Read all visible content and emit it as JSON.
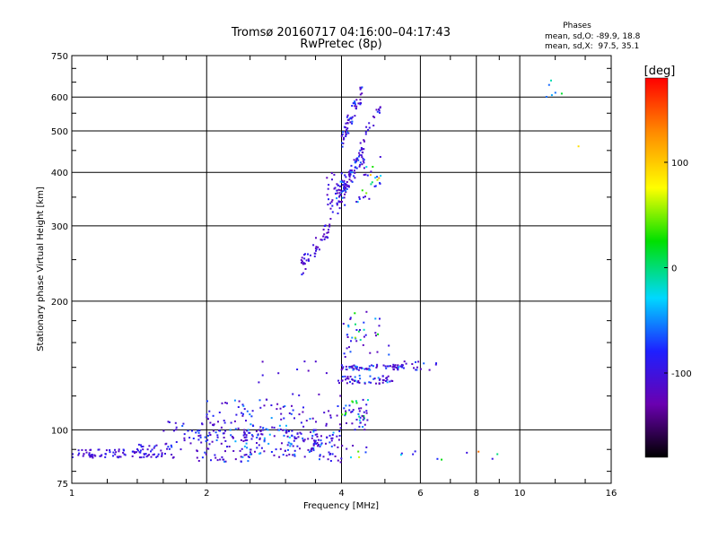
{
  "chart_data": {
    "type": "scatter",
    "title": "Tromsø 20160717 04:16:00–04:17:43",
    "subtitle": "RwPretec (8p)",
    "xlabel": "Frequency [MHz]",
    "ylabel": "Stationary phase Virtual Height [km]",
    "x_scale": "log",
    "y_scale": "log",
    "xlim": [
      1,
      16
    ],
    "ylim": [
      75,
      750
    ],
    "x_ticks": [
      1,
      2,
      4,
      6,
      8,
      10,
      16
    ],
    "y_ticks": [
      75,
      100,
      200,
      300,
      400,
      500,
      600,
      750
    ],
    "grid": true,
    "stats": {
      "heading": "Phases",
      "line_o": "mean, sd,O: -89.9, 18.8",
      "line_x": "mean, sd,X:  97.5, 35.1"
    },
    "colorbar": {
      "label": "[deg]",
      "ticks": [
        100,
        0,
        -100
      ],
      "range": [
        -180,
        180
      ]
    },
    "point_clusters": [
      {
        "x": [
          1.0,
          1.35
        ],
        "y": [
          86,
          90
        ],
        "phase": [
          -115,
          -80
        ],
        "n": 55
      },
      {
        "x": [
          1.35,
          1.7
        ],
        "y": [
          86,
          93
        ],
        "phase": [
          -115,
          -70
        ],
        "n": 50
      },
      {
        "x": [
          1.6,
          2.0
        ],
        "y": [
          90,
          105
        ],
        "phase": [
          -115,
          -60
        ],
        "n": 30
      },
      {
        "x": [
          1.9,
          2.5
        ],
        "y": [
          84,
          100
        ],
        "phase": [
          -120,
          -40
        ],
        "n": 70
      },
      {
        "x": [
          2.0,
          3.0
        ],
        "y": [
          98,
          118
        ],
        "phase": [
          -120,
          -40
        ],
        "n": 70
      },
      {
        "x": [
          2.4,
          3.6
        ],
        "y": [
          86,
          100
        ],
        "phase": [
          -120,
          -30
        ],
        "n": 100
      },
      {
        "x": [
          3.0,
          4.0
        ],
        "y": [
          92,
          115
        ],
        "phase": [
          -120,
          -20
        ],
        "n": 50
      },
      {
        "x": [
          3.4,
          4.0
        ],
        "y": [
          84,
          98
        ],
        "phase": [
          -120,
          -60
        ],
        "n": 40
      },
      {
        "x": [
          2.6,
          4.0
        ],
        "y": [
          120,
          145
        ],
        "phase": [
          -120,
          -80
        ],
        "n": 15
      },
      {
        "x": [
          4.0,
          4.6
        ],
        "y": [
          100,
          118
        ],
        "phase": [
          -120,
          40
        ],
        "n": 45
      },
      {
        "x": [
          4.0,
          4.6
        ],
        "y": [
          86,
          95
        ],
        "phase": [
          -120,
          140
        ],
        "n": 8
      },
      {
        "x": [
          4.0,
          5.2
        ],
        "y": [
          128,
          134
        ],
        "phase": [
          -120,
          -40
        ],
        "n": 50
      },
      {
        "x": [
          4.0,
          5.5
        ],
        "y": [
          138,
          142
        ],
        "phase": [
          -120,
          -40
        ],
        "n": 70
      },
      {
        "x": [
          5.5,
          7.0
        ],
        "y": [
          138,
          145
        ],
        "phase": [
          -120,
          -60
        ],
        "n": 15
      },
      {
        "x": [
          4.0,
          4.9
        ],
        "y": [
          160,
          190
        ],
        "phase": [
          -120,
          80
        ],
        "n": 30
      },
      {
        "x": [
          4.0,
          5.2
        ],
        "y": [
          148,
          158
        ],
        "phase": [
          -120,
          -60
        ],
        "n": 10
      },
      {
        "x": [
          3.25,
          3.8
        ],
        "y": [
          228,
          320
        ],
        "phase": [
          -120,
          -80
        ],
        "n": 50
      },
      {
        "x": [
          3.7,
          4.1
        ],
        "y": [
          320,
          400
        ],
        "phase": [
          -120,
          -80
        ],
        "n": 40
      },
      {
        "x": [
          3.9,
          4.5
        ],
        "y": [
          330,
          470
        ],
        "phase": [
          -120,
          -40
        ],
        "n": 90
      },
      {
        "x": [
          4.0,
          4.45
        ],
        "y": [
          450,
          650
        ],
        "phase": [
          -120,
          -40
        ],
        "n": 60
      },
      {
        "x": [
          4.3,
          4.9
        ],
        "y": [
          340,
          440
        ],
        "phase": [
          -110,
          130
        ],
        "n": 30
      },
      {
        "x": [
          4.4,
          4.9
        ],
        "y": [
          450,
          600
        ],
        "phase": [
          -120,
          -60
        ],
        "n": 20
      },
      {
        "x": [
          5.3,
          9.6
        ],
        "y": [
          85,
          90
        ],
        "phase": [
          -100,
          160
        ],
        "n": 10
      },
      {
        "x": [
          11.0,
          13.5
        ],
        "y": [
          600,
          660
        ],
        "phase": [
          -60,
          170
        ],
        "n": 6
      },
      {
        "x": [
          13.5,
          13.6
        ],
        "y": [
          460,
          465
        ],
        "phase": [
          90,
          90
        ],
        "n": 1
      }
    ]
  }
}
